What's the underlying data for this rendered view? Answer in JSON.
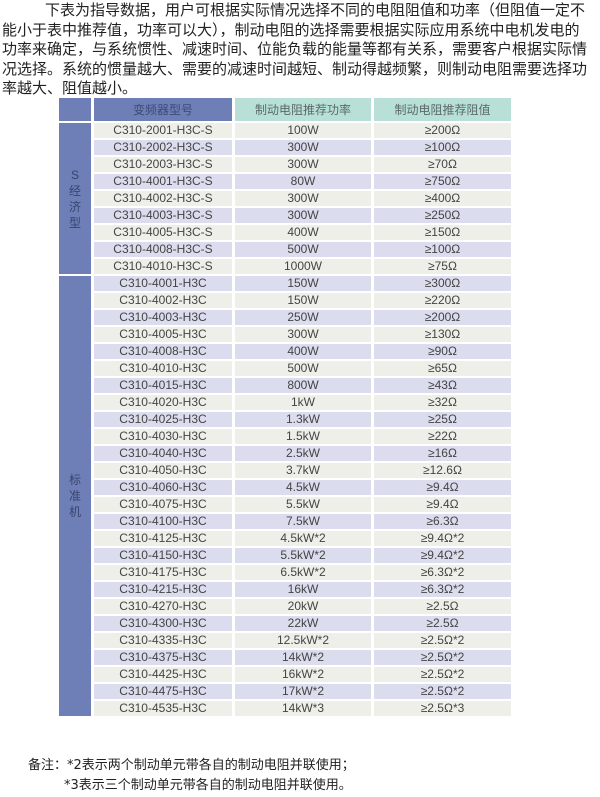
{
  "intro": "下表为指导数据，用户可根据实际情况选择不同的电阻阻值和功率（但阻值一定不能小于表中推荐值，功率可以大），制动电阻的选择需要根据实际应用系统中电机发电的功率来确定，与系统惯性、减速时间、位能负载的能量等都有关系，需要客户根据实际情况选择。系统的惯量越大、需要的减速时间越短、制动得越频繁，则制动电阻需要选择功率越大、阻值越小。",
  "table": {
    "headers": [
      "",
      "变频器型号",
      "制动电阻推荐功率",
      "制动电阻推荐阻值"
    ],
    "groups": [
      {
        "label": "S经济型",
        "rows": [
          [
            "C310-2001-H3C-S",
            "100W",
            "≥200Ω"
          ],
          [
            "C310-2002-H3C-S",
            "300W",
            "≥100Ω"
          ],
          [
            "C310-2003-H3C-S",
            "300W",
            "≥70Ω"
          ],
          [
            "C310-4001-H3C-S",
            "80W",
            "≥750Ω"
          ],
          [
            "C310-4002-H3C-S",
            "300W",
            "≥400Ω"
          ],
          [
            "C310-4003-H3C-S",
            "300W",
            "≥250Ω"
          ],
          [
            "C310-4005-H3C-S",
            "400W",
            "≥150Ω"
          ],
          [
            "C310-4008-H3C-S",
            "500W",
            "≥100Ω"
          ],
          [
            "C310-4010-H3C-S",
            "1000W",
            "≥75Ω"
          ]
        ]
      },
      {
        "label": "标准机",
        "rows": [
          [
            "C310-4001-H3C",
            "150W",
            "≥300Ω"
          ],
          [
            "C310-4002-H3C",
            "150W",
            "≥220Ω"
          ],
          [
            "C310-4003-H3C",
            "250W",
            "≥200Ω"
          ],
          [
            "C310-4005-H3C",
            "300W",
            "≥130Ω"
          ],
          [
            "C310-4008-H3C",
            "400W",
            "≥90Ω"
          ],
          [
            "C310-4010-H3C",
            "500W",
            "≥65Ω"
          ],
          [
            "C310-4015-H3C",
            "800W",
            "≥43Ω"
          ],
          [
            "C310-4020-H3C",
            "1kW",
            "≥32Ω"
          ],
          [
            "C310-4025-H3C",
            "1.3kW",
            "≥25Ω"
          ],
          [
            "C310-4030-H3C",
            "1.5kW",
            "≥22Ω"
          ],
          [
            "C310-4040-H3C",
            "2.5kW",
            "≥16Ω"
          ],
          [
            "C310-4050-H3C",
            "3.7kW",
            "≥12.6Ω"
          ],
          [
            "C310-4060-H3C",
            "4.5kW",
            "≥9.4Ω"
          ],
          [
            "C310-4075-H3C",
            "5.5kW",
            "≥9.4Ω"
          ],
          [
            "C310-4100-H3C",
            "7.5kW",
            "≥6.3Ω"
          ],
          [
            "C310-4125-H3C",
            "4.5kW*2",
            "≥9.4Ω*2"
          ],
          [
            "C310-4150-H3C",
            "5.5kW*2",
            "≥9.4Ω*2"
          ],
          [
            "C310-4175-H3C",
            "6.5kW*2",
            "≥6.3Ω*2"
          ],
          [
            "C310-4215-H3C",
            "16kW",
            "≥6.3Ω*2"
          ],
          [
            "C310-4270-H3C",
            "20kW",
            "≥2.5Ω"
          ],
          [
            "C310-4300-H3C",
            "22kW",
            "≥2.5Ω"
          ],
          [
            "C310-4335-H3C",
            "12.5kW*2",
            "≥2.5Ω*2"
          ],
          [
            "C310-4375-H3C",
            "14kW*2",
            "≥2.5Ω*2"
          ],
          [
            "C310-4425-H3C",
            "16kW*2",
            "≥2.5Ω*2"
          ],
          [
            "C310-4475-H3C",
            "17kW*2",
            "≥2.5Ω*2"
          ],
          [
            "C310-4535-H3C",
            "14kW*3",
            "≥2.5Ω*3"
          ]
        ]
      }
    ]
  },
  "notes": [
    "备注：*2表示两个制动单元带各自的制动电阻并联使用；",
    "*3表示三个制动单元带各自的制动电阻并联使用。"
  ],
  "colors": {
    "group_column": "#6d7fb6",
    "header_teal": "#b8e0d6",
    "row_odd": "#efefe9",
    "row_even": "#dcdcef"
  }
}
